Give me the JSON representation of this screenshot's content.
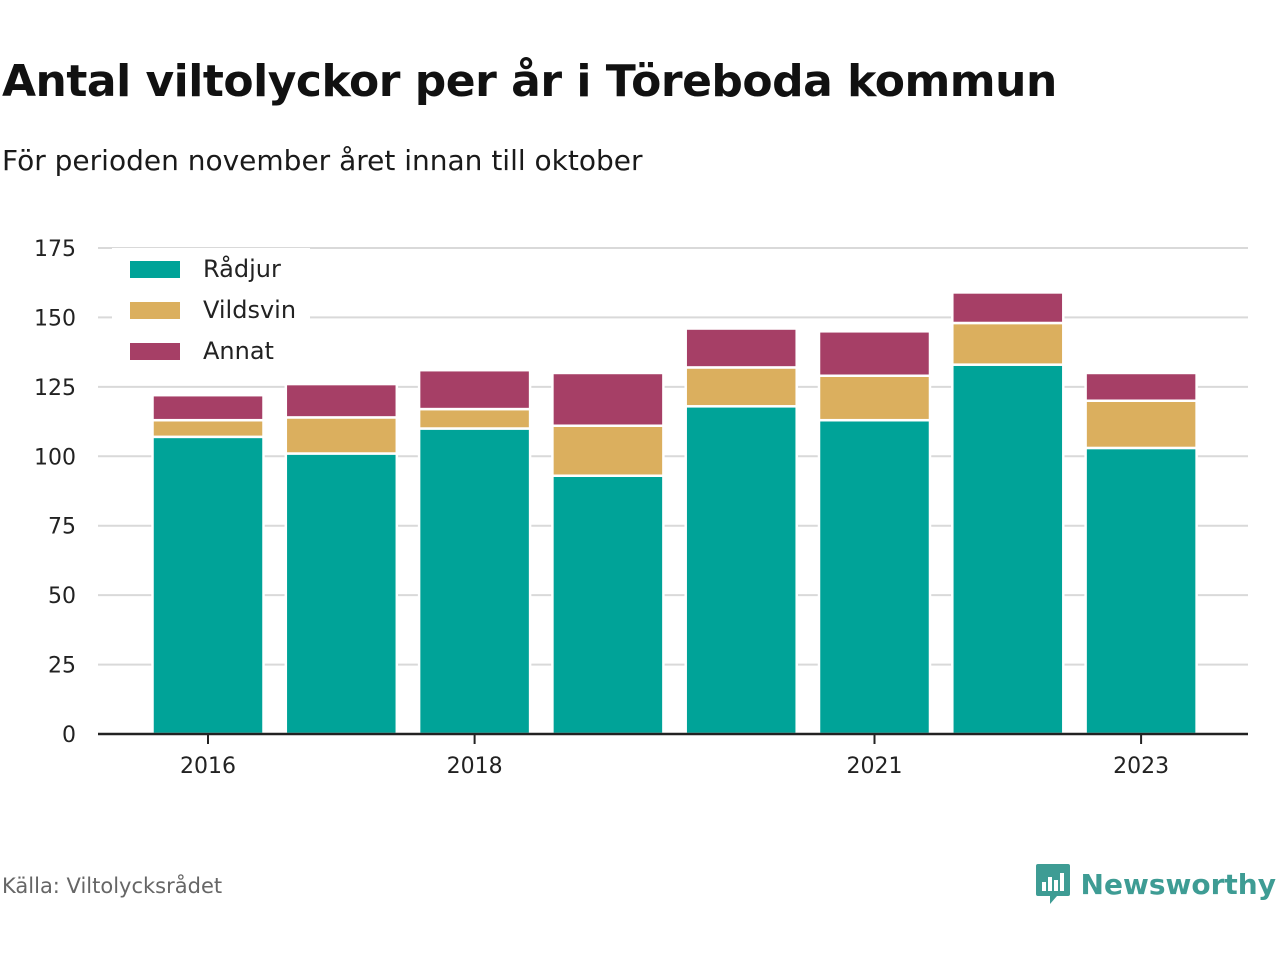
{
  "title": "Antal viltolyckor per år i Töreboda kommun",
  "subtitle": "För perioden november året innan till oktober",
  "source": "Källa: Viltolycksrådet",
  "brand": {
    "name": "Newsworthy",
    "icon": "newsworthy-logo-icon",
    "color": "#3e9c94"
  },
  "chart_data": {
    "type": "bar",
    "stacked": true,
    "categories": [
      "2016",
      "2017",
      "2018",
      "2019",
      "2020",
      "2021",
      "2022",
      "2023"
    ],
    "x_tick_labels": [
      "2016",
      "2018",
      "2021",
      "2023"
    ],
    "series": [
      {
        "name": "Rådjur",
        "color": "#00a398",
        "values": [
          107,
          101,
          110,
          93,
          118,
          113,
          133,
          103
        ]
      },
      {
        "name": "Vildsvin",
        "color": "#dbaf5e",
        "values": [
          6,
          13,
          7,
          18,
          14,
          16,
          15,
          17
        ]
      },
      {
        "name": "Annat",
        "color": "#a63f66",
        "values": [
          9,
          12,
          14,
          19,
          14,
          16,
          11,
          10
        ]
      }
    ],
    "ylim": [
      0,
      175
    ],
    "yticks": [
      0,
      25,
      50,
      75,
      100,
      125,
      150,
      175
    ],
    "grid": true,
    "legend_position": "top-left",
    "xlabel": "",
    "ylabel": ""
  }
}
